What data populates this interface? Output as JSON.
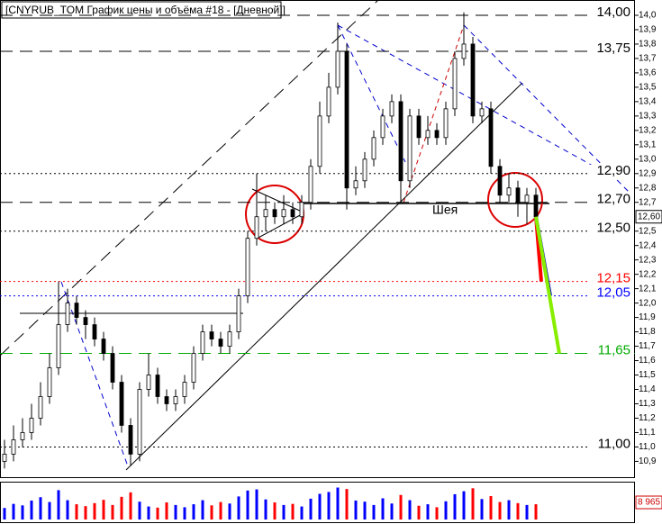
{
  "chart_data": {
    "type": "candlestick",
    "title": "[CNYRUB_TOM График цены и объёма #18 - [Дневной]]",
    "annotation": "Шея",
    "last_price": {
      "value": 12.6,
      "label": "12,60"
    },
    "open": [
      10.9,
      10.95,
      11.05,
      11.1,
      11.2,
      11.35,
      11.55,
      11.85,
      12.0,
      11.9,
      11.85,
      11.75,
      11.65,
      11.45,
      11.15,
      10.95,
      11.4,
      11.5,
      11.35,
      11.3,
      11.35,
      11.45,
      11.65,
      11.8,
      11.75,
      11.7,
      11.8,
      12.05,
      12.45,
      12.6,
      12.65,
      12.6,
      12.65,
      12.6,
      12.7,
      12.95,
      13.3,
      13.5,
      13.75,
      12.8,
      12.85,
      13.0,
      13.15,
      13.3,
      13.4,
      12.85,
      13.3,
      13.15,
      13.2,
      13.15,
      13.35,
      13.7,
      13.8,
      13.3,
      13.35,
      12.95,
      12.75,
      12.8,
      12.7,
      12.75
    ],
    "high": [
      11.05,
      11.15,
      11.2,
      11.3,
      11.45,
      11.65,
      12.15,
      12.1,
      12.05,
      11.95,
      11.9,
      11.8,
      11.7,
      11.5,
      11.2,
      11.45,
      11.65,
      11.55,
      11.4,
      11.4,
      11.5,
      11.7,
      11.85,
      11.85,
      11.8,
      11.85,
      12.1,
      12.5,
      12.9,
      12.75,
      12.7,
      12.75,
      12.7,
      12.75,
      13.0,
      13.4,
      13.6,
      13.95,
      13.8,
      12.95,
      13.05,
      13.2,
      13.35,
      13.45,
      13.45,
      13.35,
      13.35,
      13.3,
      13.25,
      13.4,
      13.75,
      14.02,
      13.85,
      13.4,
      13.4,
      13.0,
      12.9,
      12.85,
      12.8,
      12.8
    ],
    "low": [
      10.85,
      10.9,
      11.0,
      11.05,
      11.15,
      11.3,
      11.5,
      11.8,
      11.85,
      11.75,
      11.7,
      11.6,
      11.4,
      11.1,
      10.87,
      10.9,
      11.35,
      11.3,
      11.25,
      11.25,
      11.3,
      11.4,
      11.6,
      11.7,
      11.65,
      11.65,
      11.75,
      12.0,
      12.4,
      12.5,
      12.55,
      12.55,
      12.55,
      12.55,
      12.65,
      12.9,
      13.25,
      13.45,
      12.65,
      12.75,
      12.8,
      12.95,
      13.1,
      13.25,
      12.7,
      12.8,
      13.1,
      13.1,
      13.1,
      13.1,
      13.3,
      13.65,
      13.25,
      13.25,
      12.9,
      12.7,
      12.7,
      12.6,
      12.55,
      12.55
    ],
    "close": [
      10.95,
      11.05,
      11.1,
      11.2,
      11.35,
      11.55,
      11.85,
      12.0,
      11.9,
      11.85,
      11.75,
      11.65,
      11.45,
      11.15,
      10.95,
      11.4,
      11.5,
      11.35,
      11.3,
      11.35,
      11.45,
      11.65,
      11.8,
      11.75,
      11.7,
      11.8,
      12.05,
      12.45,
      12.6,
      12.65,
      12.6,
      12.65,
      12.6,
      12.7,
      12.95,
      13.3,
      13.5,
      13.75,
      12.8,
      12.85,
      13.0,
      13.15,
      13.3,
      13.4,
      12.85,
      13.3,
      13.15,
      13.2,
      13.15,
      13.35,
      13.7,
      13.8,
      13.3,
      13.35,
      12.95,
      12.75,
      12.8,
      12.7,
      12.75,
      12.6
    ],
    "volume": [
      3100,
      4200,
      3800,
      5100,
      6000,
      4700,
      7900,
      5200,
      4100,
      3600,
      4400,
      5300,
      3900,
      6100,
      7300,
      4800,
      3500,
      3200,
      4600,
      3900,
      3300,
      4100,
      5200,
      3800,
      4700,
      4300,
      6200,
      7800,
      8100,
      5400,
      4600,
      3900,
      4200,
      3500,
      5600,
      6900,
      7400,
      8600,
      8200,
      5100,
      4800,
      3900,
      5700,
      4300,
      6600,
      5200,
      3700,
      4100,
      3300,
      4900,
      6800,
      7600,
      8400,
      5500,
      6300,
      4700,
      5200,
      4400,
      3900,
      4100
    ],
    "volume_ylim": [
      0,
      8965
    ],
    "volume_ticks": [
      {
        "value": 8965,
        "label": "8 965"
      }
    ],
    "up_color": "#0000ff",
    "down_color": "#ff0000",
    "ylim": [
      10.79,
      14.075
    ],
    "yticks": [
      {
        "value": 14.0,
        "label": "14,0"
      },
      {
        "value": 13.9,
        "label": "13,9"
      },
      {
        "value": 13.8,
        "label": "13,8"
      },
      {
        "value": 13.7,
        "label": "13,7"
      },
      {
        "value": 13.6,
        "label": "13,6"
      },
      {
        "value": 13.5,
        "label": "13,5"
      },
      {
        "value": 13.4,
        "label": "13,4"
      },
      {
        "value": 13.3,
        "label": "13,3"
      },
      {
        "value": 13.2,
        "label": "13,2"
      },
      {
        "value": 13.1,
        "label": "13,1"
      },
      {
        "value": 13.0,
        "label": "13,0"
      },
      {
        "value": 12.9,
        "label": "12,9"
      },
      {
        "value": 12.8,
        "label": "12,8"
      },
      {
        "value": 12.7,
        "label": "12,7"
      },
      {
        "value": 12.5,
        "label": "12,5"
      },
      {
        "value": 12.4,
        "label": "12,4"
      },
      {
        "value": 12.3,
        "label": "12,3"
      },
      {
        "value": 12.2,
        "label": "12,2"
      },
      {
        "value": 12.1,
        "label": "12,1"
      },
      {
        "value": 12.0,
        "label": "12,0"
      },
      {
        "value": 11.9,
        "label": "11,9"
      },
      {
        "value": 11.8,
        "label": "11,8"
      },
      {
        "value": 11.7,
        "label": "11,7"
      },
      {
        "value": 11.6,
        "label": "11,6"
      },
      {
        "value": 11.5,
        "label": "11,5"
      },
      {
        "value": 11.4,
        "label": "11,4"
      },
      {
        "value": 11.3,
        "label": "11,3"
      },
      {
        "value": 11.2,
        "label": "11,2"
      },
      {
        "value": 11.1,
        "label": "11,1"
      },
      {
        "value": 11.0,
        "label": "11,0"
      },
      {
        "value": 10.9,
        "label": "10,9"
      }
    ],
    "levels": [
      {
        "value": 14.0,
        "label": "14,00",
        "color": "#000000",
        "style": "dashed"
      },
      {
        "value": 13.75,
        "label": "13,75",
        "color": "#000000",
        "style": "dashed"
      },
      {
        "value": 12.9,
        "label": "12,90",
        "color": "#000000",
        "style": "dotted"
      },
      {
        "value": 12.7,
        "label": "12,70",
        "color": "#000000",
        "style": "dashed"
      },
      {
        "value": 12.5,
        "label": "12,50",
        "color": "#000000",
        "style": "dotted"
      },
      {
        "value": 12.15,
        "label": "12,15",
        "color": "#ff0000",
        "style": "dotted"
      },
      {
        "value": 12.05,
        "label": "12,05",
        "color": "#0000ff",
        "style": "dotted"
      },
      {
        "value": 11.65,
        "label": "11,65",
        "color": "#00aa00",
        "style": "dashed"
      },
      {
        "value": 11.0,
        "label": "11,00",
        "color": "#000000",
        "style": "dotted"
      }
    ],
    "projections": [
      {
        "level": 5,
        "color": "#ff0000"
      },
      {
        "level": 6,
        "color": "#0000cc"
      },
      {
        "level": 7,
        "color": "#88ee00"
      }
    ]
  }
}
